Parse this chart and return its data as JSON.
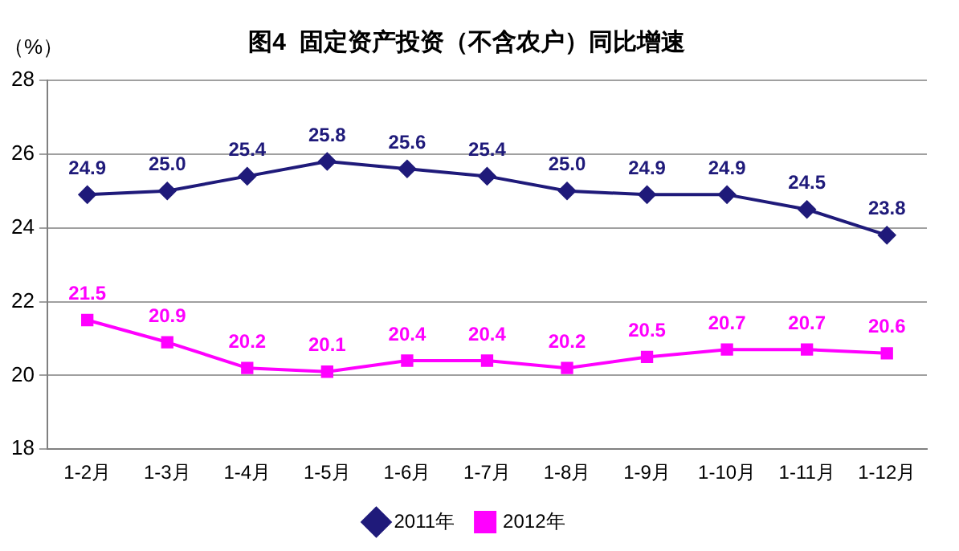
{
  "chart_data": {
    "type": "line",
    "title": "图4  固定资产投资（不含农户）同比增速",
    "ylabel": "（%）",
    "categories": [
      "1-2月",
      "1-3月",
      "1-4月",
      "1-5月",
      "1-6月",
      "1-7月",
      "1-8月",
      "1-9月",
      "1-10月",
      "1-11月",
      "1-12月"
    ],
    "series": [
      {
        "name": "2011年",
        "color": "#1f1a7a",
        "marker": "diamond",
        "values": [
          24.9,
          25.0,
          25.4,
          25.8,
          25.6,
          25.4,
          25.0,
          24.9,
          24.9,
          24.5,
          23.8
        ],
        "value_labels": [
          "24.9",
          "25.0",
          "25.4",
          "25.8",
          "25.6",
          "25.4",
          "25.0",
          "24.9",
          "24.9",
          "24.5",
          "23.8"
        ]
      },
      {
        "name": "2012年",
        "color": "#ff00ff",
        "marker": "square",
        "values": [
          21.5,
          20.9,
          20.2,
          20.1,
          20.4,
          20.4,
          20.2,
          20.5,
          20.7,
          20.7,
          20.6
        ],
        "value_labels": [
          "21.5",
          "20.9",
          "20.2",
          "20.1",
          "20.4",
          "20.4",
          "20.2",
          "20.5",
          "20.7",
          "20.7",
          "20.6"
        ]
      }
    ],
    "ylim": [
      18,
      28
    ],
    "yticks": [
      18,
      20,
      22,
      24,
      26,
      28
    ],
    "grid": "y",
    "legend": "bottom",
    "line_style": "solid"
  }
}
